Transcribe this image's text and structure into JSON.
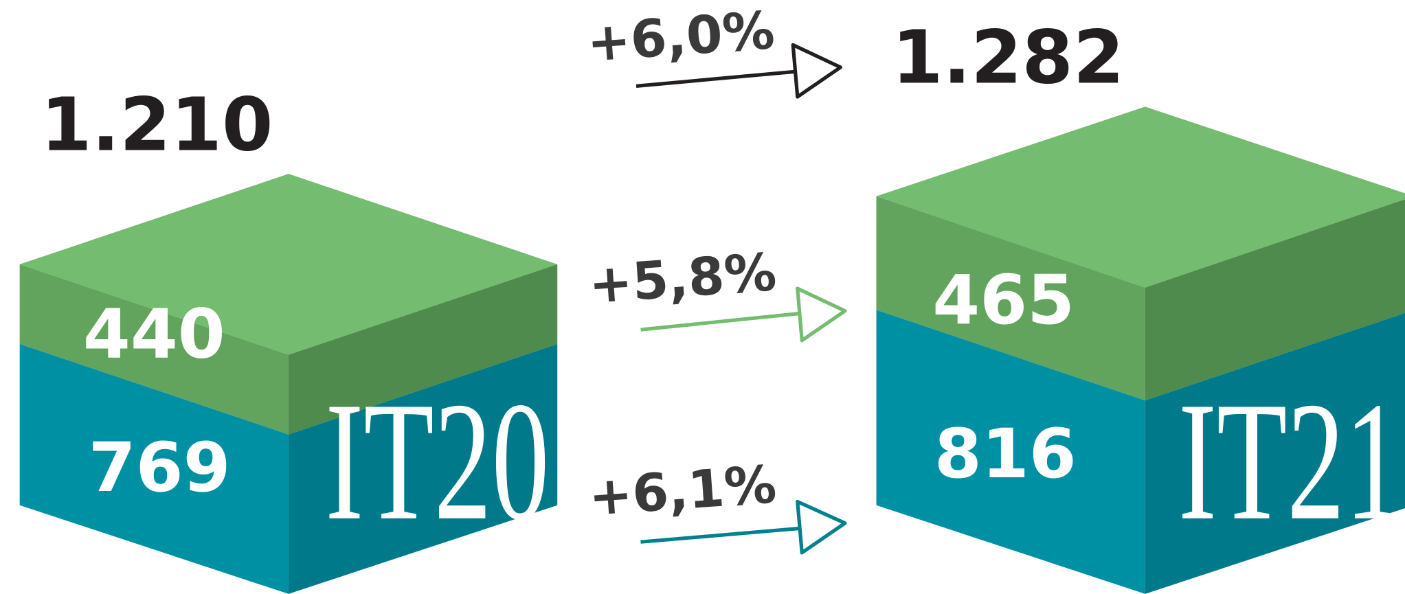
{
  "cubes": [
    {
      "total": "1.210",
      "top": "440",
      "bottom": "769",
      "label": "IT20"
    },
    {
      "total": "1.282",
      "top": "465",
      "bottom": "816",
      "label": "IT21"
    }
  ],
  "growth": {
    "total": "+6,0%",
    "top": "+5,8%",
    "bottom": "+6,1%"
  }
}
